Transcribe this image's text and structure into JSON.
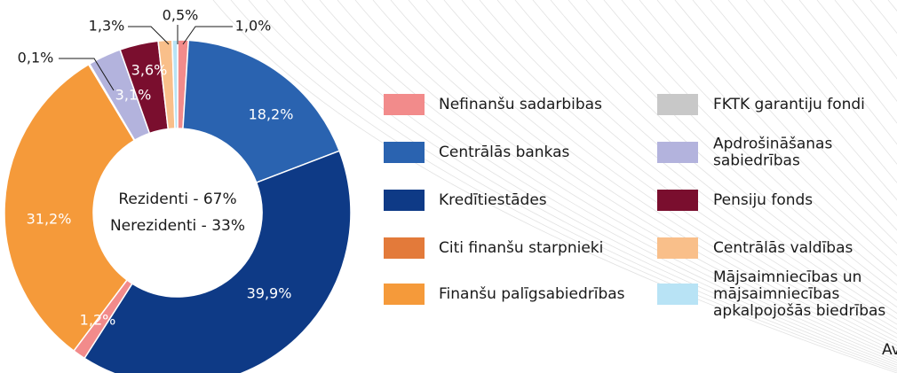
{
  "chart_data": {
    "type": "pie",
    "center_text": [
      "Rezidenti - 67%",
      "Nerezidenti - 33%"
    ],
    "slices": [
      {
        "value": 1.0,
        "label": "1,0%",
        "color": "#f28b8b"
      },
      {
        "value": 18.2,
        "label": "18,2%",
        "color": "#2a63b0"
      },
      {
        "value": 39.9,
        "label": "39,9%",
        "color": "#0e3a86"
      },
      {
        "value": 1.2,
        "label": "1,2%",
        "color": "#f28b8b"
      },
      {
        "value": 31.2,
        "label": "31,2%",
        "color": "#f59a3a"
      },
      {
        "value": 0.1,
        "label": "0,1%",
        "color": "#e37a3a"
      },
      {
        "value": 3.1,
        "label": "3,1%",
        "color": "#b3b3dd"
      },
      {
        "value": 3.6,
        "label": "3,6%",
        "color": "#7a0e2e"
      },
      {
        "value": 1.3,
        "label": "1,3%",
        "color": "#f9bf8a"
      },
      {
        "value": 0.5,
        "label": "0,5%",
        "color": "#b8e3f5"
      }
    ],
    "legend": [
      {
        "name": [
          "Nefinanšu sadarbibas"
        ],
        "color": "#f28b8b"
      },
      {
        "name": [
          "Centrālās bankas"
        ],
        "color": "#2a63b0"
      },
      {
        "name": [
          "Kredītiestādes"
        ],
        "color": "#0e3a86"
      },
      {
        "name": [
          "Citi finanšu starpnieki"
        ],
        "color": "#e37a3a"
      },
      {
        "name": [
          "Finanšu palīgsabiedrības"
        ],
        "color": "#f59a3a"
      },
      {
        "name": [
          "FKTK garantiju fondi"
        ],
        "color": "#c8c8c8"
      },
      {
        "name": [
          "Apdrošināšanas",
          "sabiedrības"
        ],
        "color": "#b3b3dd"
      },
      {
        "name": [
          "Pensiju fonds"
        ],
        "color": "#7a0e2e"
      },
      {
        "name": [
          "Centrālās valdības"
        ],
        "color": "#f9bf8a"
      },
      {
        "name": [
          "Mājsaimniecības un",
          "mājsaimniecības",
          "apkalpojošās biedrības"
        ],
        "color": "#b8e3f5"
      }
    ],
    "source": "Av"
  }
}
